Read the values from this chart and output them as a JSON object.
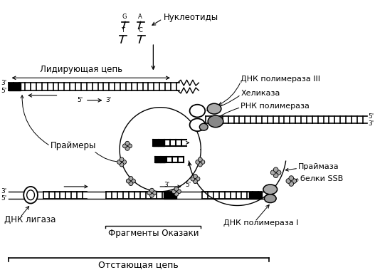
{
  "labels": {
    "nucleotides": "Нуклеотиды",
    "leading_strand": "Лидирующая цепь",
    "dna_pol3": "ДНК полимераза III",
    "helicase": "Хеликаза",
    "rna_pol": "РНК полимераза",
    "primers": "Праймеры",
    "primase": "Праймаза",
    "ssb": "белки SSB",
    "dna_lig": "ДНК лигаза",
    "dna_pol1": "ДНК полимераза I",
    "okazaki": "Фрагменты Оказаки",
    "lagging_strand": "Отстающая цепь"
  },
  "colors": {
    "black": "#000000",
    "white": "#ffffff",
    "gray": "#888888",
    "dark_gray": "#555555"
  },
  "figsize": [
    5.27,
    3.86
  ],
  "dpi": 100
}
